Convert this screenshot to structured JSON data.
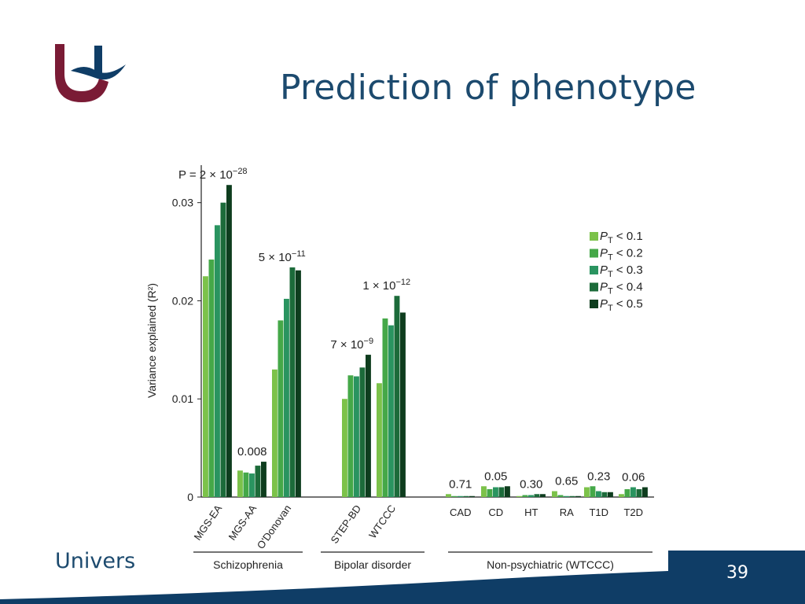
{
  "slide": {
    "title": "Prediction of phenotype",
    "footer_text": "Univers",
    "page_number": "39",
    "colors": {
      "title": "#1c4a6e",
      "footer_band": "#0f3d66",
      "logo": "#7a1b35"
    }
  },
  "chart_data": {
    "type": "bar",
    "title": "",
    "ylabel": "Variance explained (R²)",
    "ylim": [
      0,
      0.0335
    ],
    "yticks": [
      {
        "value": 0,
        "label": "0"
      },
      {
        "value": 0.01,
        "label": "0.01"
      },
      {
        "value": 0.02,
        "label": "0.02"
      },
      {
        "value": 0.03,
        "label": "0.03"
      }
    ],
    "legend": {
      "position": "right",
      "entries": [
        {
          "label": "< 0.1",
          "color": "#7cc24a"
        },
        {
          "label": "< 0.2",
          "color": "#45a848"
        },
        {
          "label": "< 0.3",
          "color": "#2a9460"
        },
        {
          "label": "< 0.4",
          "color": "#1c6b3a"
        },
        {
          "label": "< 0.5",
          "color": "#0e3d1e"
        }
      ]
    },
    "categories": [
      {
        "name": "MGS-EA",
        "values": [
          0.0225,
          0.0242,
          0.0277,
          0.03,
          0.0318
        ],
        "annotation": "P = 2 × 10",
        "annotation_exp": "−28"
      },
      {
        "name": "MGS-AA",
        "values": [
          0.0027,
          0.0025,
          0.0024,
          0.0032,
          0.0036
        ],
        "annotation": "0.008",
        "annotation_exp": ""
      },
      {
        "name": "O'Donovan",
        "values": [
          0.013,
          0.018,
          0.0202,
          0.0234,
          0.0231
        ],
        "annotation": "5 × 10",
        "annotation_exp": "−11"
      },
      {
        "name": "STEP-BD",
        "values": [
          0.01,
          0.0124,
          0.0123,
          0.0132,
          0.0145
        ],
        "annotation": "7 × 10",
        "annotation_exp": "−9"
      },
      {
        "name": "WTCCC",
        "values": [
          0.0116,
          0.0182,
          0.0175,
          0.0205,
          0.0188
        ],
        "annotation": "1 × 10",
        "annotation_exp": "−12"
      },
      {
        "name": "CAD",
        "values": [
          0.0003,
          0.0001,
          0.0001,
          0.0001,
          0.0001
        ],
        "annotation": "0.71",
        "annotation_exp": ""
      },
      {
        "name": "CD",
        "values": [
          0.0011,
          0.0008,
          0.001,
          0.001,
          0.0011
        ],
        "annotation": "0.05",
        "annotation_exp": ""
      },
      {
        "name": "HT",
        "values": [
          0.0001,
          0.0002,
          0.0002,
          0.0003,
          0.0003
        ],
        "annotation": "0.30",
        "annotation_exp": ""
      },
      {
        "name": "RA",
        "values": [
          0.0006,
          0.0002,
          0.0001,
          0.0001,
          0.0001
        ],
        "annotation": "0.65",
        "annotation_exp": ""
      },
      {
        "name": "T1D",
        "values": [
          0.001,
          0.0011,
          0.0006,
          0.0005,
          0.0005
        ],
        "annotation": "0.23",
        "annotation_exp": ""
      },
      {
        "name": "T2D",
        "values": [
          0.0003,
          0.0008,
          0.001,
          0.0008,
          0.001
        ],
        "annotation": "0.06",
        "annotation_exp": ""
      }
    ],
    "groups": [
      {
        "label": "Schizophrenia",
        "members": [
          "MGS-EA",
          "MGS-AA",
          "O'Donovan"
        ]
      },
      {
        "label": "Bipolar disorder",
        "members": [
          "STEP-BD",
          "WTCCC"
        ]
      },
      {
        "label": "Non-psychiatric (WTCCC)",
        "members": [
          "CAD",
          "CD",
          "HT",
          "RA",
          "T1D",
          "T2D"
        ]
      }
    ]
  }
}
